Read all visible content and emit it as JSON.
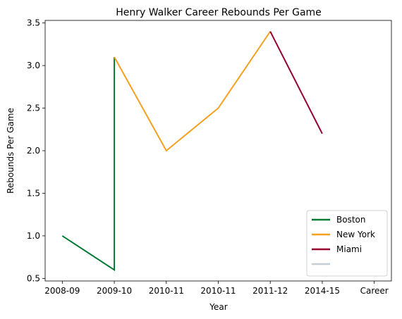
{
  "chart_data": {
    "type": "line",
    "title": "Henry Walker  Career Rebounds Per Game",
    "xlabel": "Year",
    "ylabel": "Rebounds Per Game",
    "x_ticks": [
      "2008-09",
      "2009-10",
      "2010-11",
      "2010-11",
      "2011-12",
      "2014-15",
      "Career"
    ],
    "y_ticks": [
      "0.5",
      "1.0",
      "1.5",
      "2.0",
      "2.5",
      "3.0",
      "3.5"
    ],
    "ylim": [
      0.47,
      3.53
    ],
    "xlim": [
      -0.33,
      6.33
    ],
    "grid": false,
    "legend_position": "lower right",
    "series": [
      {
        "name": "Boston",
        "color": "#007A33",
        "x": [
          0,
          1,
          1
        ],
        "values": [
          1.0,
          0.6,
          3.1
        ]
      },
      {
        "name": "New York",
        "color": "#F5A01F",
        "x": [
          1,
          2,
          3,
          4
        ],
        "values": [
          3.1,
          2.0,
          2.5,
          3.4
        ]
      },
      {
        "name": "Miami",
        "color": "#98002E",
        "x": [
          4,
          5
        ],
        "values": [
          3.4,
          2.2
        ]
      },
      {
        "name": "",
        "color": "#C4CED4",
        "x": [],
        "values": []
      }
    ]
  }
}
